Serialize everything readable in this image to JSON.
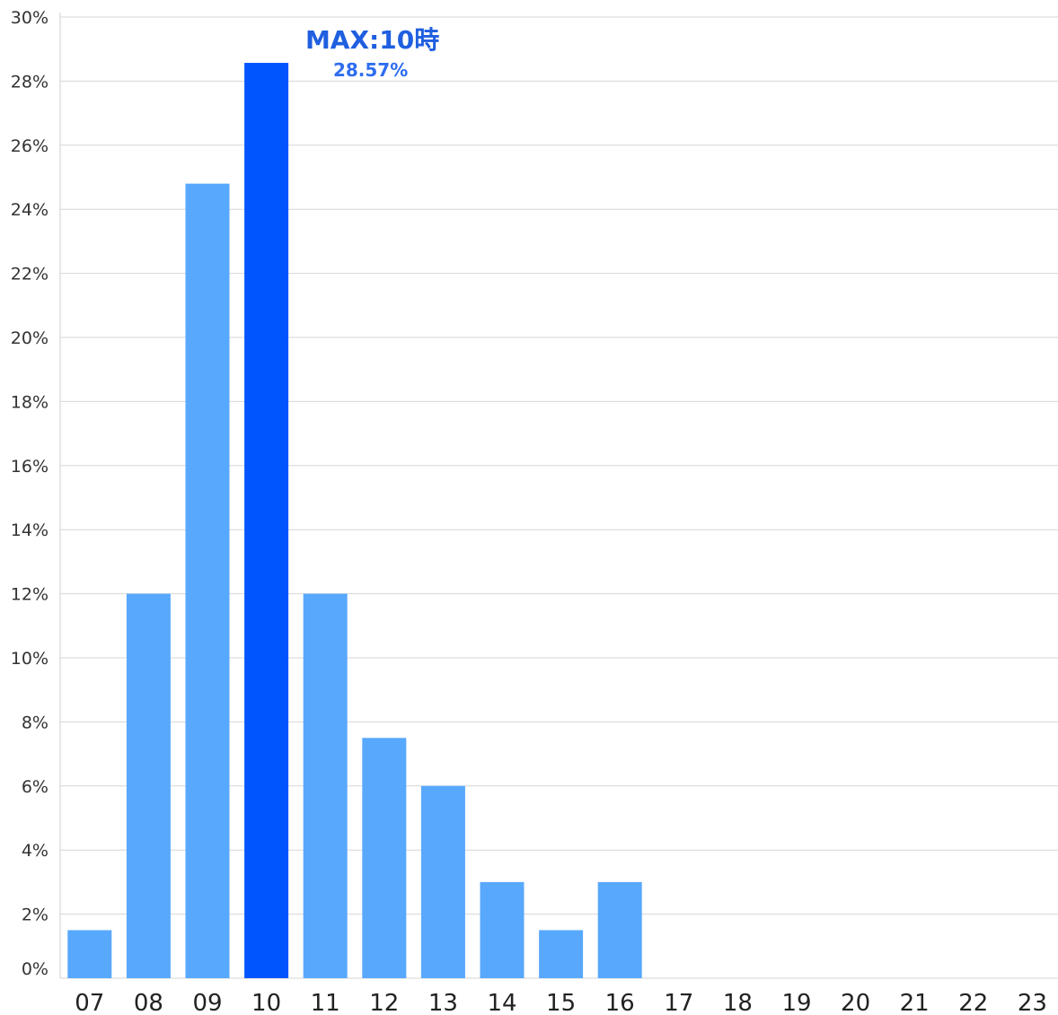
{
  "chart_data": {
    "type": "bar",
    "categories": [
      "07",
      "08",
      "09",
      "10",
      "11",
      "12",
      "13",
      "14",
      "15",
      "16",
      "17",
      "18",
      "19",
      "20",
      "21",
      "22",
      "23"
    ],
    "values": [
      1.5,
      12,
      24.8,
      28.57,
      12,
      7.5,
      6,
      3,
      1.5,
      3,
      0,
      0,
      0,
      0,
      0,
      0,
      0
    ],
    "ylim": [
      0,
      30
    ],
    "yticks": [
      "0%",
      "2%",
      "4%",
      "6%",
      "8%",
      "10%",
      "12%",
      "14%",
      "16%",
      "18%",
      "20%",
      "22%",
      "24%",
      "26%",
      "28%",
      "30%"
    ],
    "grid": true,
    "annotation": {
      "category": "10",
      "title": "MAX:10時",
      "value_label": "28.57%"
    },
    "colors": {
      "bar": "#58a8fd",
      "highlight": "#0055ff",
      "annotation_title": "#1f5fe0",
      "annotation_value": "#2f6df0"
    }
  }
}
